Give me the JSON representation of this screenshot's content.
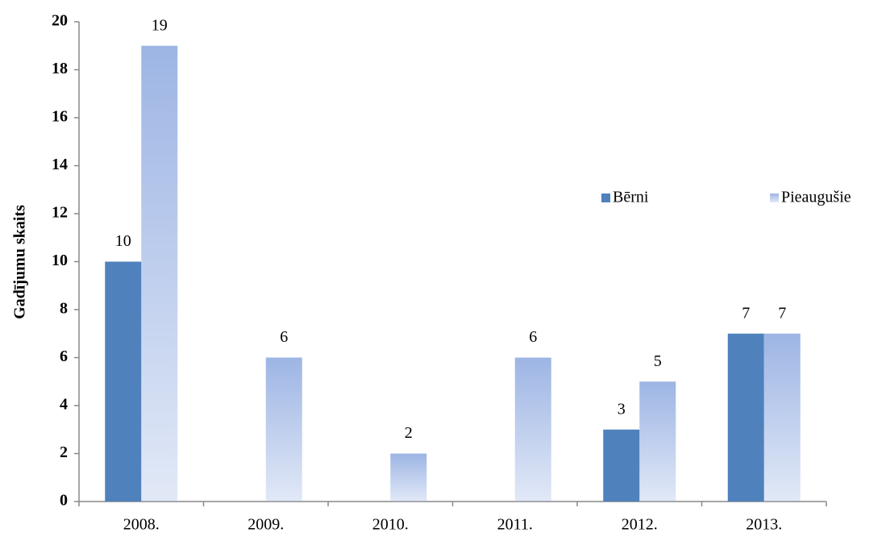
{
  "chart_data": {
    "type": "bar",
    "y_label": "Gadījumu skaits",
    "categories": [
      "2008.",
      "2009.",
      "2010.",
      "2011.",
      "2012.",
      "2013."
    ],
    "series": [
      {
        "name": "Bērni",
        "color": "#4f81bd",
        "values": [
          10,
          null,
          null,
          null,
          3,
          7
        ]
      },
      {
        "name": "Pieaugušie",
        "color": "#9db5e4",
        "values": [
          19,
          6,
          2,
          6,
          5,
          7
        ]
      }
    ],
    "ylim": [
      0,
      20
    ],
    "yticks": [
      0,
      2,
      4,
      6,
      8,
      10,
      12,
      14,
      16,
      18,
      20
    ],
    "grid": false,
    "legend": "right"
  }
}
